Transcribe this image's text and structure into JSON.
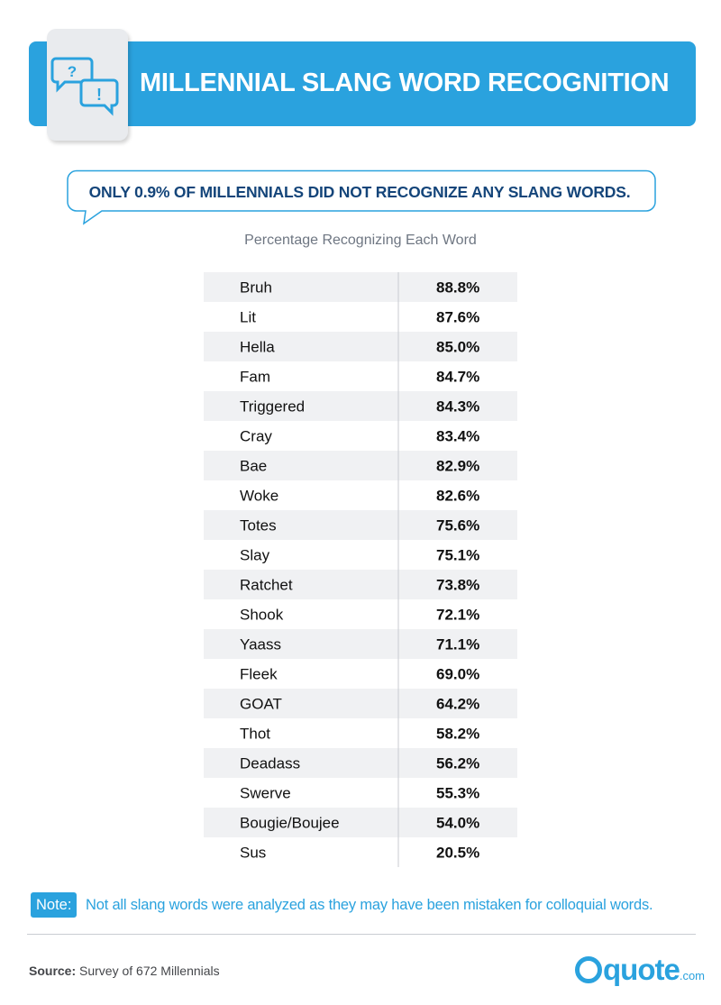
{
  "header": {
    "title": "MILLENNIAL SLANG WORD RECOGNITION",
    "icon": "speech-bubbles-question-exclamation-icon",
    "accent_color": "#2aa2de"
  },
  "callout": {
    "text": "ONLY 0.9% OF MILLENNIALS DID NOT RECOGNIZE ANY SLANG WORDS.",
    "text_color": "#14457a"
  },
  "chart_data": {
    "type": "table",
    "title": "Percentage Recognizing Each Word",
    "categories": [
      "Bruh",
      "Lit",
      "Hella",
      "Fam",
      "Triggered",
      "Cray",
      "Bae",
      "Woke",
      "Totes",
      "Slay",
      "Ratchet",
      "Shook",
      "Yaass",
      "Fleek",
      "GOAT",
      "Thot",
      "Deadass",
      "Swerve",
      "Bougie/Boujee",
      "Sus"
    ],
    "values": [
      88.8,
      87.6,
      85.0,
      84.7,
      84.3,
      83.4,
      82.9,
      82.6,
      75.6,
      75.1,
      73.8,
      72.1,
      71.1,
      69.0,
      64.2,
      58.2,
      56.2,
      55.3,
      54.0,
      20.5
    ],
    "value_labels": [
      "88.8%",
      "87.6%",
      "85.0%",
      "84.7%",
      "84.3%",
      "83.4%",
      "82.9%",
      "82.6%",
      "75.6%",
      "75.1%",
      "73.8%",
      "72.1%",
      "71.1%",
      "69.0%",
      "64.2%",
      "58.2%",
      "56.2%",
      "55.3%",
      "54.0%",
      "20.5%"
    ],
    "stripe_color": "#f0f1f3"
  },
  "note": {
    "badge": "Note:",
    "text": "Not all slang words were analyzed as they may have been mistaken for colloquial words."
  },
  "footer": {
    "source_label": "Source:",
    "source_text": "Survey of 672 Millennials",
    "logo_text": "quote",
    "logo_suffix": ".com"
  }
}
